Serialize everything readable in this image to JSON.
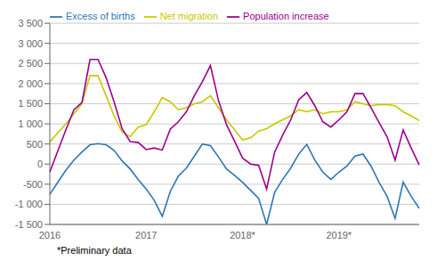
{
  "chart_data": {
    "type": "line",
    "annotations": [
      "*Preliminary data"
    ],
    "categories": [
      "2016",
      null,
      null,
      null,
      null,
      null,
      null,
      null,
      null,
      null,
      null,
      null,
      "2017",
      null,
      null,
      null,
      null,
      null,
      null,
      null,
      null,
      null,
      null,
      null,
      "2018*",
      null,
      null,
      null,
      null,
      null,
      null,
      null,
      null,
      null,
      null,
      null,
      "2019*",
      null,
      null,
      null,
      null,
      null,
      null,
      null,
      null,
      null,
      null
    ],
    "series": [
      {
        "name": "Excess of births",
        "color": "#2e75b6",
        "values": [
          -750,
          -450,
          -150,
          100,
          300,
          480,
          510,
          480,
          340,
          80,
          -120,
          -380,
          -620,
          -900,
          -1300,
          -680,
          -300,
          -100,
          200,
          500,
          460,
          180,
          -120,
          -280,
          -450,
          -650,
          -850,
          -1500,
          -700,
          -380,
          -100,
          250,
          490,
          100,
          -200,
          -380,
          -200,
          -50,
          200,
          250,
          -50,
          -450,
          -800,
          -1350,
          -450,
          -800,
          -1100
        ]
      },
      {
        "name": "Net migration",
        "color": "#c8c800",
        "values": [
          550,
          780,
          1000,
          1250,
          1500,
          2200,
          2200,
          1700,
          1200,
          800,
          680,
          920,
          980,
          1300,
          1650,
          1550,
          1350,
          1400,
          1500,
          1550,
          1700,
          1400,
          1100,
          850,
          600,
          650,
          820,
          880,
          1000,
          1100,
          1200,
          1350,
          1300,
          1350,
          1250,
          1300,
          1300,
          1350,
          1550,
          1500,
          1450,
          1480,
          1480,
          1450,
          1300,
          1200,
          1080
        ]
      },
      {
        "name": "Population increase",
        "color": "#9b008f",
        "values": [
          -200,
          330,
          850,
          1350,
          1530,
          2600,
          2600,
          2150,
          1550,
          880,
          560,
          540,
          360,
          400,
          350,
          870,
          1050,
          1300,
          1700,
          2050,
          2450,
          1580,
          980,
          570,
          150,
          0,
          -30,
          -620,
          300,
          720,
          1100,
          1600,
          1780,
          1450,
          1050,
          920,
          1100,
          1300,
          1750,
          1750,
          1400,
          1030,
          680,
          100,
          850,
          400,
          -20
        ]
      }
    ],
    "ylim": [
      -1500,
      3500
    ],
    "yticks": [
      {
        "value": -1500,
        "label": "-1 500"
      },
      {
        "value": -1000,
        "label": "-1 000"
      },
      -500,
      0,
      500,
      {
        "value": 1000,
        "label": "1 000"
      },
      {
        "value": 1500,
        "label": "1 500"
      },
      {
        "value": 2000,
        "label": "2 000"
      },
      {
        "value": 2500,
        "label": "2 500"
      },
      {
        "value": 3000,
        "label": "3 000"
      },
      {
        "value": 3500,
        "label": "3 500"
      }
    ],
    "grid": true,
    "legend": "upper left"
  }
}
